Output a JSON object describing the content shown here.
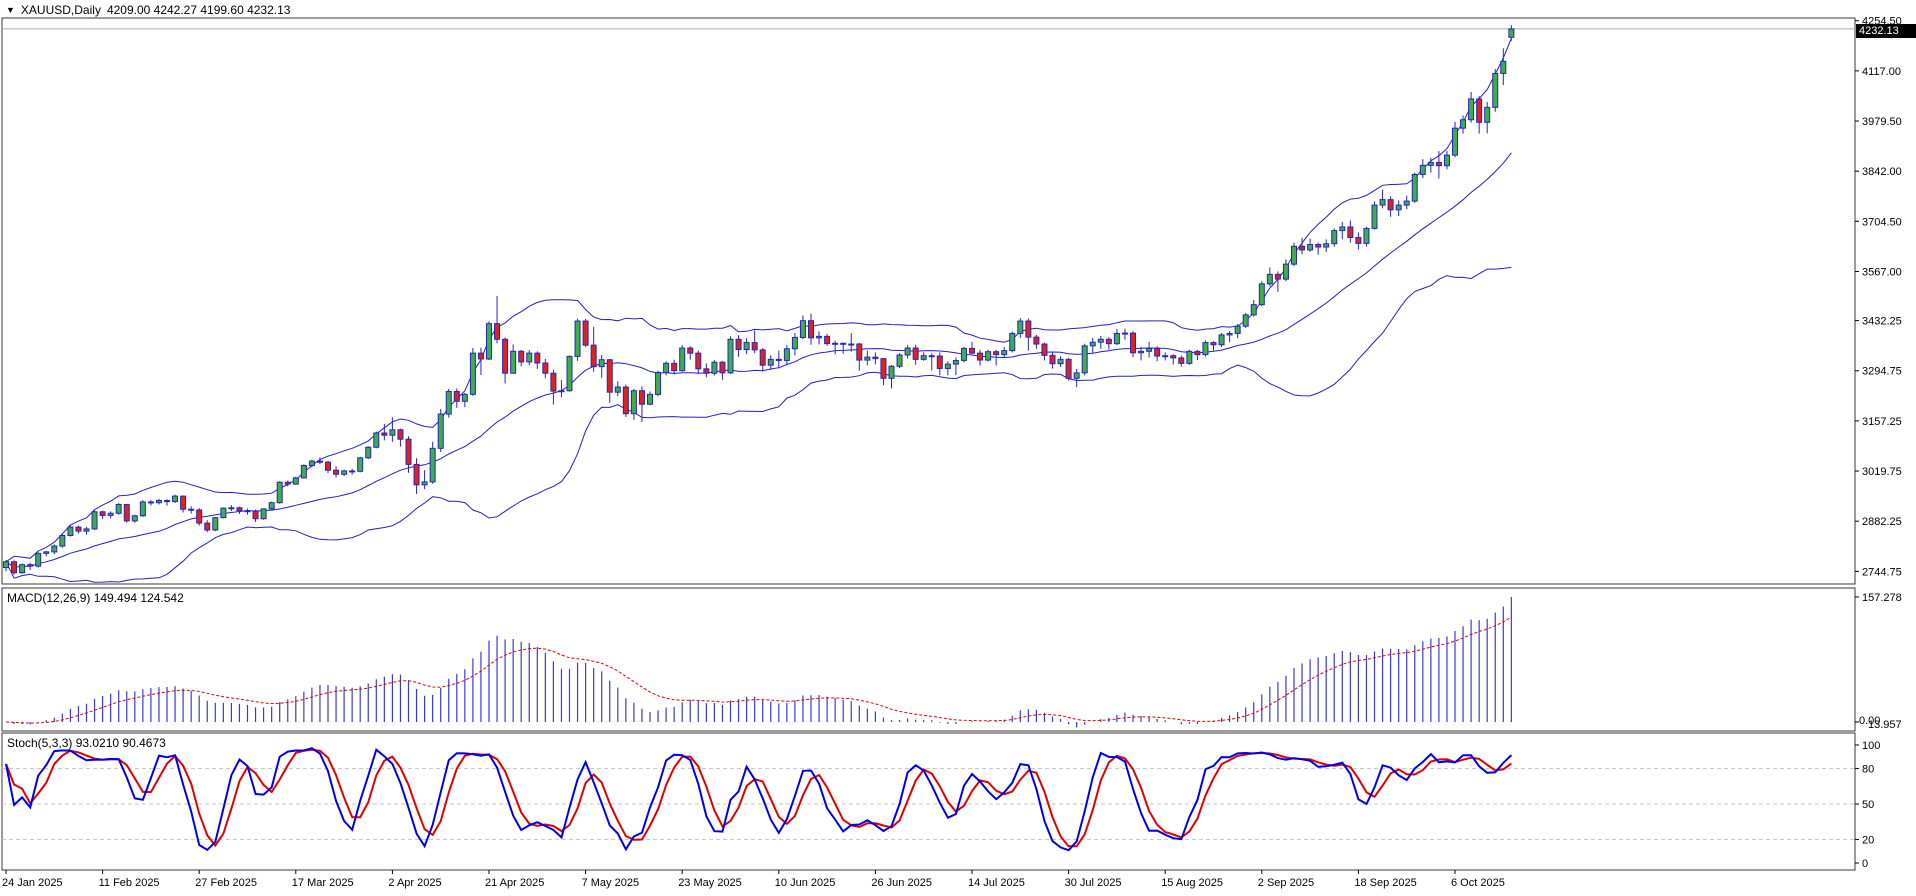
{
  "header": {
    "symbol_period": "XAUUSD,Daily",
    "ohlc_text": "4209.00 4242.27 4199.60 4232.13"
  },
  "price_tag": "4232.13",
  "panels": {
    "macd": {
      "label": "MACD(12,26,9) 149.494 124.542",
      "axis_max_label": "157.278",
      "axis_zero_label": "0.00",
      "axis_overlap_label": "13.957"
    },
    "stoch": {
      "label": "Stoch(5,3,3) 93.0210 90.4673",
      "levels": [
        100,
        80,
        50,
        20,
        0
      ],
      "dashed_levels": [
        80,
        50,
        20
      ]
    }
  },
  "colors": {
    "bull": "#3cb043",
    "bear": "#e02219",
    "candle_border": "#2424c8",
    "band": "#2020c8",
    "macd_bar": "#3a3ad0",
    "macd_signal": "#e00000",
    "stoch_k": "#0000e6",
    "stoch_d": "#e00000",
    "grid_dashed": "#c4c4c4",
    "panel_border": "#3a3a3a",
    "price_line": "#aaaaaa",
    "tag_bg": "#000000",
    "tag_text": "#ffffff",
    "axis_text": "#000000"
  },
  "chart_data": {
    "type": "candlestick",
    "symbol": "XAUUSD",
    "timeframe": "Daily",
    "title": "XAUUSD,Daily",
    "last_ohlc": {
      "open": 4209.0,
      "high": 4242.27,
      "low": 4199.6,
      "close": 4232.13
    },
    "price_axis_ticks": [
      "4254.50",
      "4117.00",
      "3979.50",
      "3842.00",
      "3704.50",
      "3567.00",
      "3432.25",
      "3294.75",
      "3157.25",
      "3019.75",
      "2882.25",
      "2744.75"
    ],
    "price_range": [
      2710,
      4262
    ],
    "date_ticks": [
      "24 Jan 2025",
      "11 Feb 2025",
      "27 Feb 2025",
      "17 Mar 2025",
      "2 Apr 2025",
      "21 Apr 2025",
      "7 May 2025",
      "23 May 2025",
      "10 Jun 2025",
      "26 Jun 2025",
      "14 Jul 2025",
      "30 Jul 2025",
      "15 Aug 2025",
      "2 Sep 2025",
      "18 Sep 2025",
      "6 Oct 2025"
    ],
    "bars_per_tick": 12,
    "indicators": [
      {
        "name": "Bollinger Bands",
        "lines": [
          "upper",
          "middle",
          "lower"
        ]
      },
      {
        "name": "MACD",
        "params": [
          12,
          26,
          9
        ],
        "current_values": [
          149.494,
          124.542
        ],
        "scale_max": 157.278
      },
      {
        "name": "Stochastic",
        "params": [
          5,
          3,
          3
        ],
        "current_values": [
          93.021,
          90.4673
        ],
        "scale": [
          0,
          100
        ]
      }
    ],
    "candles": [
      [
        2755,
        2776,
        2745,
        2771
      ],
      [
        2771,
        2775,
        2735,
        2741
      ],
      [
        2741,
        2766,
        2738,
        2763
      ],
      [
        2763,
        2768,
        2748,
        2759
      ],
      [
        2759,
        2797,
        2755,
        2794
      ],
      [
        2794,
        2801,
        2786,
        2798
      ],
      [
        2798,
        2819,
        2792,
        2814
      ],
      [
        2814,
        2846,
        2810,
        2843
      ],
      [
        2843,
        2872,
        2840,
        2866
      ],
      [
        2866,
        2870,
        2848,
        2855
      ],
      [
        2855,
        2867,
        2845,
        2861
      ],
      [
        2861,
        2912,
        2858,
        2908
      ],
      [
        2908,
        2911,
        2888,
        2898
      ],
      [
        2898,
        2909,
        2890,
        2904
      ],
      [
        2904,
        2932,
        2900,
        2928
      ],
      [
        2928,
        2930,
        2878,
        2883
      ],
      [
        2883,
        2900,
        2878,
        2897
      ],
      [
        2897,
        2940,
        2894,
        2935
      ],
      [
        2935,
        2940,
        2925,
        2933
      ],
      [
        2933,
        2944,
        2928,
        2939
      ],
      [
        2939,
        2942,
        2925,
        2936
      ],
      [
        2936,
        2955,
        2932,
        2951
      ],
      [
        2951,
        2953,
        2906,
        2915
      ],
      [
        2915,
        2923,
        2903,
        2913
      ],
      [
        2913,
        2918,
        2870,
        2877
      ],
      [
        2877,
        2885,
        2852,
        2858
      ],
      [
        2858,
        2894,
        2855,
        2892
      ],
      [
        2892,
        2920,
        2890,
        2918
      ],
      [
        2918,
        2926,
        2910,
        2919
      ],
      [
        2919,
        2922,
        2902,
        2911
      ],
      [
        2911,
        2917,
        2900,
        2909
      ],
      [
        2909,
        2914,
        2880,
        2889
      ],
      [
        2889,
        2918,
        2886,
        2916
      ],
      [
        2916,
        2936,
        2912,
        2933
      ],
      [
        2933,
        2992,
        2930,
        2989
      ],
      [
        2989,
        2994,
        2978,
        2984
      ],
      [
        2984,
        3004,
        2982,
        3001
      ],
      [
        3001,
        3038,
        2999,
        3035
      ],
      [
        3035,
        3051,
        3030,
        3047
      ],
      [
        3047,
        3057,
        3039,
        3044
      ],
      [
        3044,
        3048,
        3014,
        3022
      ],
      [
        3022,
        3033,
        3002,
        3011
      ],
      [
        3011,
        3024,
        3006,
        3020
      ],
      [
        3020,
        3026,
        3010,
        3019
      ],
      [
        3019,
        3059,
        3016,
        3056
      ],
      [
        3056,
        3088,
        3052,
        3085
      ],
      [
        3085,
        3128,
        3082,
        3124
      ],
      [
        3124,
        3149,
        3104,
        3118
      ],
      [
        3118,
        3167,
        3100,
        3133
      ],
      [
        3133,
        3136,
        3087,
        3107
      ],
      [
        3107,
        3115,
        3015,
        3038
      ],
      [
        3038,
        3055,
        2957,
        2982
      ],
      [
        2982,
        3022,
        2970,
        2990
      ],
      [
        2990,
        3100,
        2985,
        3082
      ],
      [
        3082,
        3190,
        3072,
        3176
      ],
      [
        3176,
        3245,
        3166,
        3238
      ],
      [
        3238,
        3246,
        3193,
        3211
      ],
      [
        3211,
        3234,
        3195,
        3230
      ],
      [
        3230,
        3357,
        3226,
        3343
      ],
      [
        3343,
        3358,
        3283,
        3327
      ],
      [
        3327,
        3430,
        3324,
        3424
      ],
      [
        3424,
        3500,
        3370,
        3381
      ],
      [
        3381,
        3386,
        3260,
        3288
      ],
      [
        3288,
        3367,
        3287,
        3348
      ],
      [
        3348,
        3352,
        3307,
        3319
      ],
      [
        3319,
        3352,
        3310,
        3343
      ],
      [
        3343,
        3348,
        3300,
        3316
      ],
      [
        3316,
        3327,
        3274,
        3288
      ],
      [
        3288,
        3298,
        3202,
        3239
      ],
      [
        3239,
        3269,
        3222,
        3240
      ],
      [
        3240,
        3337,
        3237,
        3334
      ],
      [
        3334,
        3438,
        3322,
        3431
      ],
      [
        3431,
        3437,
        3360,
        3365
      ],
      [
        3365,
        3415,
        3292,
        3306
      ],
      [
        3306,
        3338,
        3275,
        3325
      ],
      [
        3325,
        3327,
        3207,
        3236
      ],
      [
        3236,
        3266,
        3225,
        3250
      ],
      [
        3250,
        3257,
        3168,
        3177
      ],
      [
        3177,
        3245,
        3160,
        3240
      ],
      [
        3240,
        3252,
        3154,
        3203
      ],
      [
        3203,
        3238,
        3200,
        3230
      ],
      [
        3230,
        3295,
        3225,
        3290
      ],
      [
        3290,
        3321,
        3282,
        3315
      ],
      [
        3315,
        3325,
        3285,
        3295
      ],
      [
        3295,
        3365,
        3292,
        3357
      ],
      [
        3357,
        3362,
        3325,
        3343
      ],
      [
        3343,
        3350,
        3285,
        3300
      ],
      [
        3300,
        3315,
        3277,
        3288
      ],
      [
        3288,
        3324,
        3282,
        3318
      ],
      [
        3318,
        3322,
        3270,
        3289
      ],
      [
        3289,
        3389,
        3286,
        3381
      ],
      [
        3381,
        3392,
        3333,
        3353
      ],
      [
        3353,
        3384,
        3340,
        3372
      ],
      [
        3372,
        3405,
        3343,
        3352
      ],
      [
        3352,
        3357,
        3293,
        3310
      ],
      [
        3310,
        3337,
        3297,
        3326
      ],
      [
        3326,
        3350,
        3301,
        3323
      ],
      [
        3323,
        3365,
        3313,
        3355
      ],
      [
        3355,
        3398,
        3337,
        3386
      ],
      [
        3386,
        3446,
        3381,
        3432
      ],
      [
        3432,
        3451,
        3366,
        3385
      ],
      [
        3385,
        3403,
        3367,
        3389
      ],
      [
        3389,
        3396,
        3363,
        3369
      ],
      [
        3369,
        3377,
        3340,
        3370
      ],
      [
        3370,
        3372,
        3341,
        3368
      ],
      [
        3368,
        3398,
        3347,
        3368
      ],
      [
        3368,
        3372,
        3295,
        3324
      ],
      [
        3324,
        3350,
        3310,
        3332
      ],
      [
        3332,
        3345,
        3312,
        3328
      ],
      [
        3328,
        3330,
        3255,
        3274
      ],
      [
        3274,
        3310,
        3246,
        3307
      ],
      [
        3307,
        3343,
        3302,
        3338
      ],
      [
        3338,
        3365,
        3328,
        3357
      ],
      [
        3357,
        3366,
        3311,
        3326
      ],
      [
        3326,
        3345,
        3322,
        3336
      ],
      [
        3336,
        3342,
        3296,
        3335
      ],
      [
        3335,
        3345,
        3282,
        3301
      ],
      [
        3301,
        3321,
        3282,
        3313
      ],
      [
        3313,
        3331,
        3283,
        3323
      ],
      [
        3323,
        3360,
        3318,
        3356
      ],
      [
        3356,
        3374,
        3340,
        3343
      ],
      [
        3343,
        3352,
        3309,
        3324
      ],
      [
        3324,
        3352,
        3320,
        3347
      ],
      [
        3347,
        3352,
        3309,
        3339
      ],
      [
        3339,
        3360,
        3331,
        3350
      ],
      [
        3350,
        3402,
        3345,
        3397
      ],
      [
        3397,
        3439,
        3385,
        3431
      ],
      [
        3431,
        3438,
        3350,
        3387
      ],
      [
        3387,
        3393,
        3355,
        3368
      ],
      [
        3368,
        3372,
        3323,
        3337
      ],
      [
        3337,
        3345,
        3301,
        3314
      ],
      [
        3314,
        3334,
        3305,
        3326
      ],
      [
        3326,
        3330,
        3268,
        3274
      ],
      [
        3274,
        3300,
        3250,
        3289
      ],
      [
        3289,
        3369,
        3282,
        3363
      ],
      [
        3363,
        3385,
        3342,
        3373
      ],
      [
        3373,
        3390,
        3355,
        3381
      ],
      [
        3381,
        3387,
        3353,
        3369
      ],
      [
        3369,
        3409,
        3365,
        3397
      ],
      [
        3397,
        3410,
        3380,
        3398
      ],
      [
        3398,
        3403,
        3332,
        3344
      ],
      [
        3344,
        3360,
        3323,
        3348
      ],
      [
        3348,
        3374,
        3331,
        3356
      ],
      [
        3356,
        3362,
        3321,
        3335
      ],
      [
        3335,
        3345,
        3323,
        3336
      ],
      [
        3336,
        3340,
        3312,
        3330
      ],
      [
        3330,
        3336,
        3306,
        3315
      ],
      [
        3315,
        3352,
        3311,
        3348
      ],
      [
        3348,
        3352,
        3324,
        3339
      ],
      [
        3339,
        3378,
        3334,
        3372
      ],
      [
        3372,
        3376,
        3350,
        3366
      ],
      [
        3366,
        3398,
        3360,
        3393
      ],
      [
        3393,
        3404,
        3373,
        3397
      ],
      [
        3397,
        3423,
        3384,
        3417
      ],
      [
        3417,
        3453,
        3412,
        3448
      ],
      [
        3448,
        3489,
        3443,
        3476
      ],
      [
        3476,
        3540,
        3472,
        3533
      ],
      [
        3533,
        3578,
        3526,
        3559
      ],
      [
        3559,
        3567,
        3511,
        3546
      ],
      [
        3546,
        3600,
        3540,
        3587
      ],
      [
        3587,
        3646,
        3582,
        3636
      ],
      [
        3636,
        3659,
        3614,
        3626
      ],
      [
        3626,
        3657,
        3621,
        3641
      ],
      [
        3641,
        3646,
        3613,
        3634
      ],
      [
        3634,
        3655,
        3620,
        3643
      ],
      [
        3643,
        3685,
        3635,
        3679
      ],
      [
        3679,
        3703,
        3655,
        3689
      ],
      [
        3689,
        3707,
        3646,
        3660
      ],
      [
        3660,
        3674,
        3627,
        3644
      ],
      [
        3644,
        3690,
        3635,
        3685
      ],
      [
        3685,
        3759,
        3682,
        3749
      ],
      [
        3749,
        3791,
        3740,
        3764
      ],
      [
        3764,
        3773,
        3717,
        3736
      ],
      [
        3736,
        3762,
        3719,
        3749
      ],
      [
        3749,
        3775,
        3738,
        3760
      ],
      [
        3760,
        3838,
        3755,
        3833
      ],
      [
        3833,
        3875,
        3823,
        3858
      ],
      [
        3858,
        3879,
        3838,
        3866
      ],
      [
        3866,
        3897,
        3822,
        3857
      ],
      [
        3857,
        3898,
        3847,
        3886
      ],
      [
        3886,
        3977,
        3880,
        3960
      ],
      [
        3960,
        3995,
        3945,
        3983
      ],
      [
        3983,
        4059,
        3975,
        4040
      ],
      [
        4040,
        4048,
        3945,
        3976
      ],
      [
        3976,
        4032,
        3946,
        4017
      ],
      [
        4017,
        4122,
        4005,
        4110
      ],
      [
        4110,
        4179,
        4078,
        4143
      ],
      [
        4209.0,
        4242.27,
        4199.6,
        4232.13
      ]
    ]
  }
}
